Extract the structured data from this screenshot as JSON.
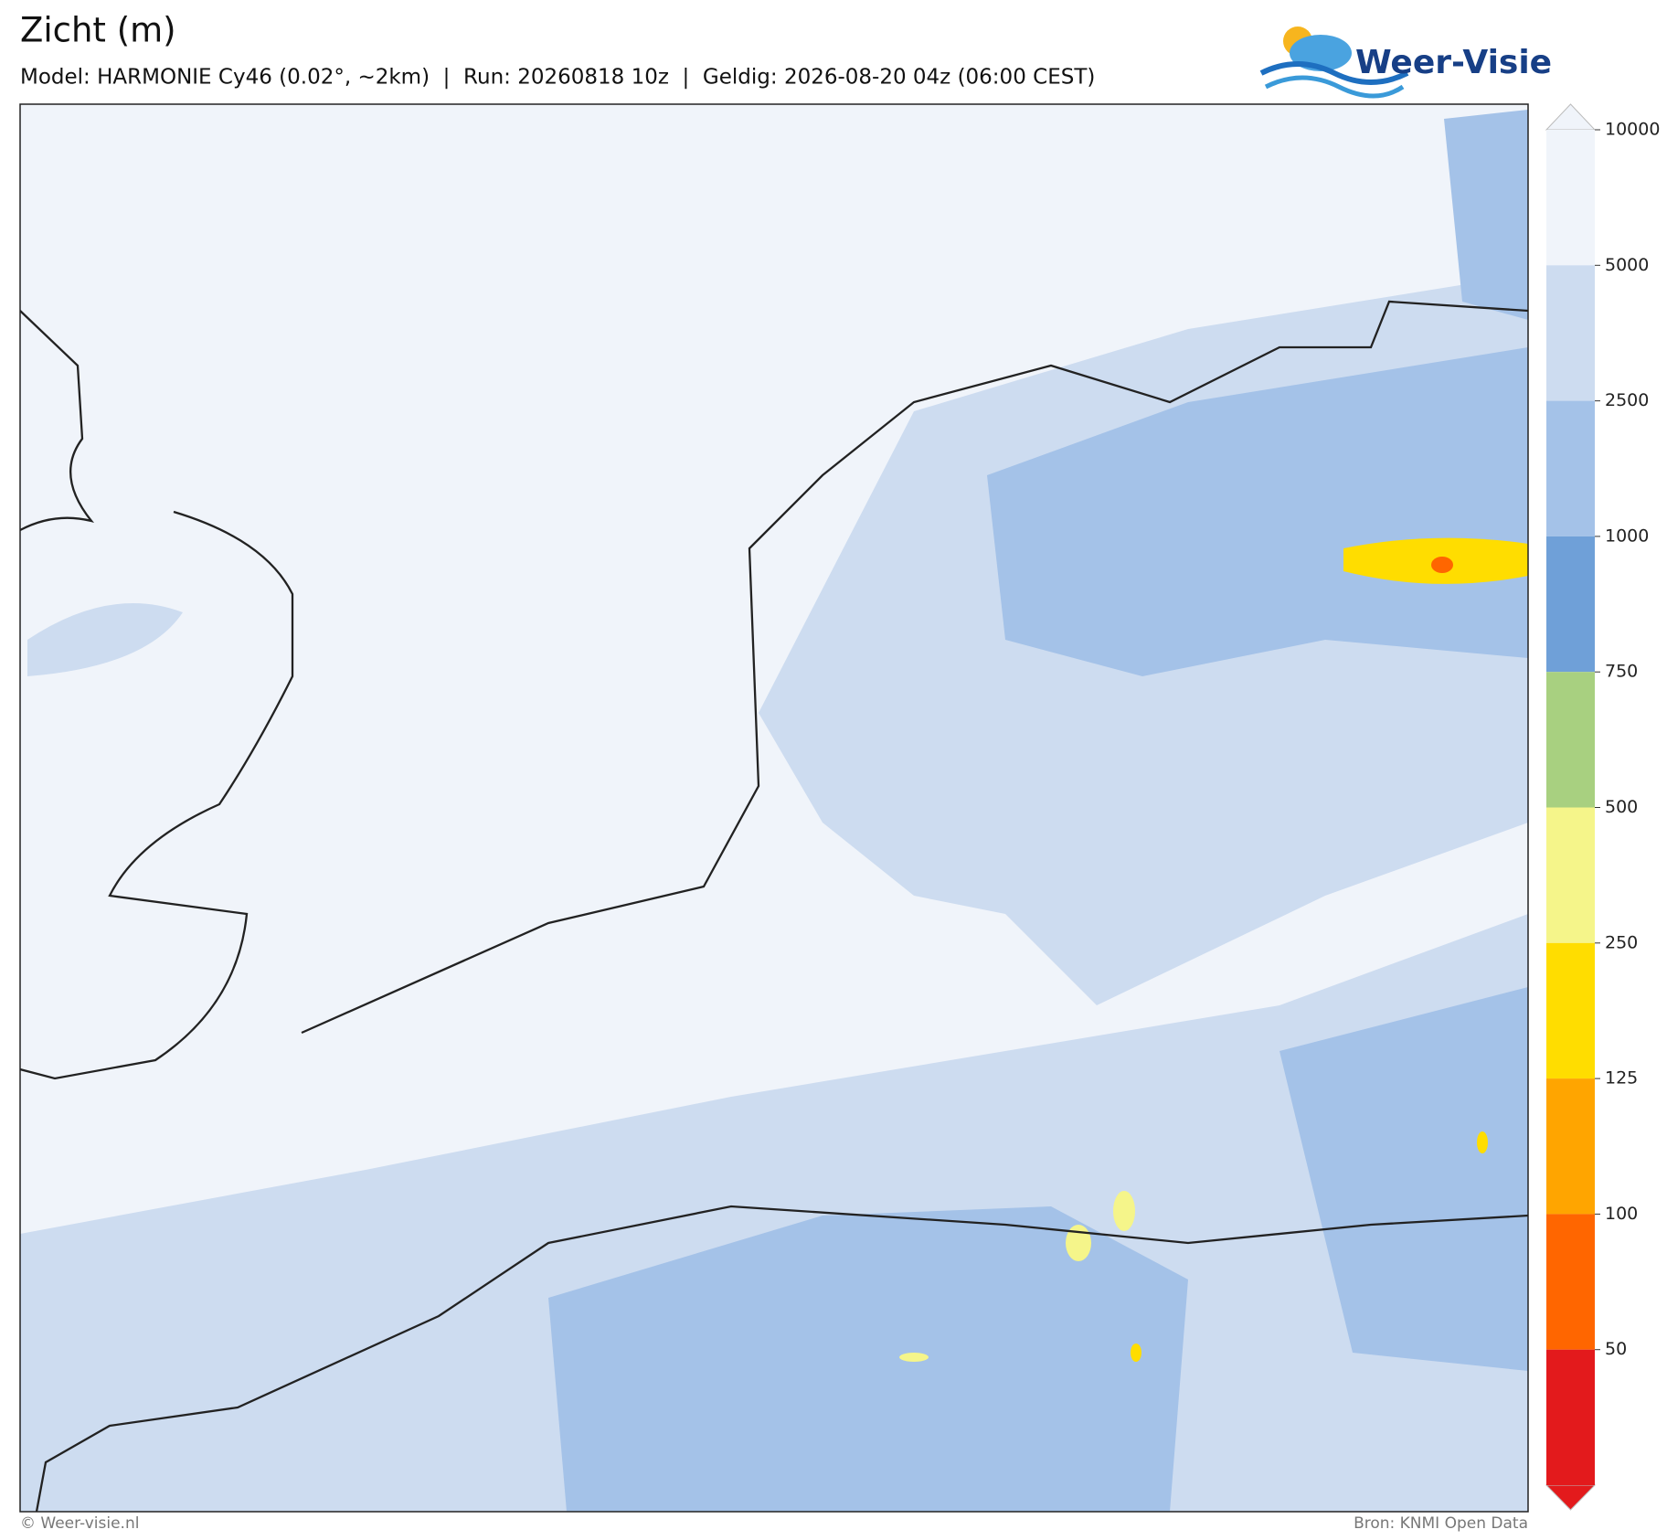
{
  "header": {
    "title": "Zicht (m)",
    "subtitle": "Model: HARMONIE Cy46 (0.02°, ~2km)  |  Run: 20260818 10z  |  Geldig: 2026-08-20 04z (06:00 CEST)"
  },
  "logo": {
    "text": "Weer-Visie"
  },
  "colorbar": {
    "levels": [
      10000,
      5000,
      2500,
      1000,
      750,
      500,
      250,
      125,
      100,
      50
    ],
    "colors": [
      "#f0f4fa",
      "#cddcf0",
      "#a4c2e8",
      "#6fa0d8",
      "#a8d080",
      "#f5f58a",
      "#ffdd00",
      "#ffa500",
      "#ff6600",
      "#e31a1c"
    ]
  },
  "footer": {
    "left": "© Weer-visie.nl",
    "right": "Bron: KNMI Open Data"
  }
}
